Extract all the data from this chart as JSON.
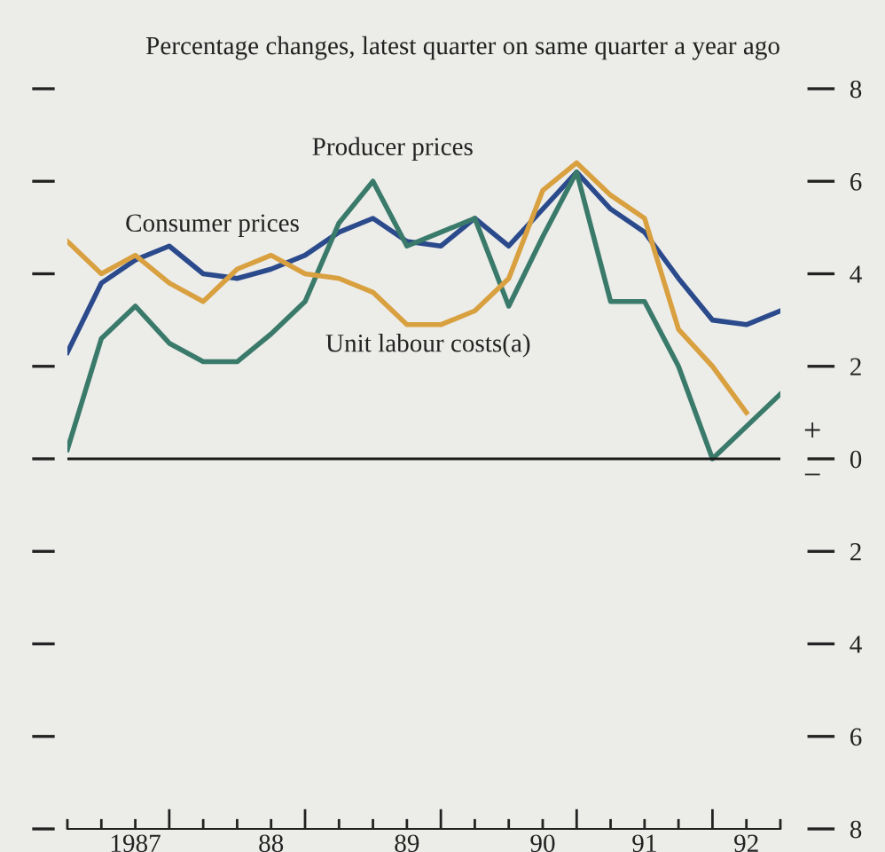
{
  "chart_data": {
    "type": "line",
    "title": "Percentage changes, latest quarter on same quarter a year ago",
    "categories": [
      null,
      null,
      "1987",
      null,
      null,
      null,
      "88",
      null,
      null,
      null,
      "89",
      null,
      null,
      null,
      "90",
      null,
      null,
      "91",
      null,
      null,
      "92",
      null
    ],
    "series": [
      {
        "name": "Consumer prices",
        "color": "#2b4a8c",
        "values": [
          2.3,
          3.8,
          4.3,
          4.6,
          4.0,
          3.9,
          4.1,
          4.4,
          4.9,
          5.2,
          4.7,
          4.6,
          5.2,
          4.6,
          5.4,
          6.2,
          5.4,
          4.9,
          3.9,
          3.0,
          2.9,
          3.2
        ]
      },
      {
        "name": "Producer prices",
        "color": "#3a7a6a",
        "values": [
          0.2,
          2.6,
          3.3,
          2.5,
          2.1,
          2.1,
          2.7,
          3.4,
          5.1,
          6.0,
          4.6,
          4.9,
          5.2,
          3.3,
          4.8,
          6.2,
          3.4,
          3.4,
          2.0,
          0.0,
          0.7,
          1.4
        ]
      },
      {
        "name": "Unit labour costs(a)",
        "color": "#d9a040",
        "values": [
          4.7,
          4.0,
          4.4,
          3.8,
          3.4,
          4.1,
          4.4,
          4.0,
          3.9,
          3.6,
          2.9,
          2.9,
          3.2,
          3.9,
          5.8,
          6.4,
          5.7,
          5.2,
          2.8,
          2.0,
          1.0,
          null
        ]
      }
    ],
    "ylim": [
      -8,
      8
    ],
    "yticks": [
      {
        "value": 8,
        "label": "8"
      },
      {
        "value": 6,
        "label": "6"
      },
      {
        "value": 4,
        "label": "4"
      },
      {
        "value": 2,
        "label": "2"
      },
      {
        "value": 0,
        "label": "0"
      },
      {
        "value": -2,
        "label": "2"
      },
      {
        "value": -4,
        "label": "4"
      },
      {
        "value": -6,
        "label": "6"
      },
      {
        "value": -8,
        "label": "8"
      }
    ],
    "ref_lines": [
      {
        "axis": "y",
        "value": 0,
        "color": "#1a1a1a"
      }
    ],
    "annotations": [
      "+",
      "−"
    ],
    "grid": false,
    "legend": false,
    "marker": "none",
    "line_style": "solid"
  }
}
